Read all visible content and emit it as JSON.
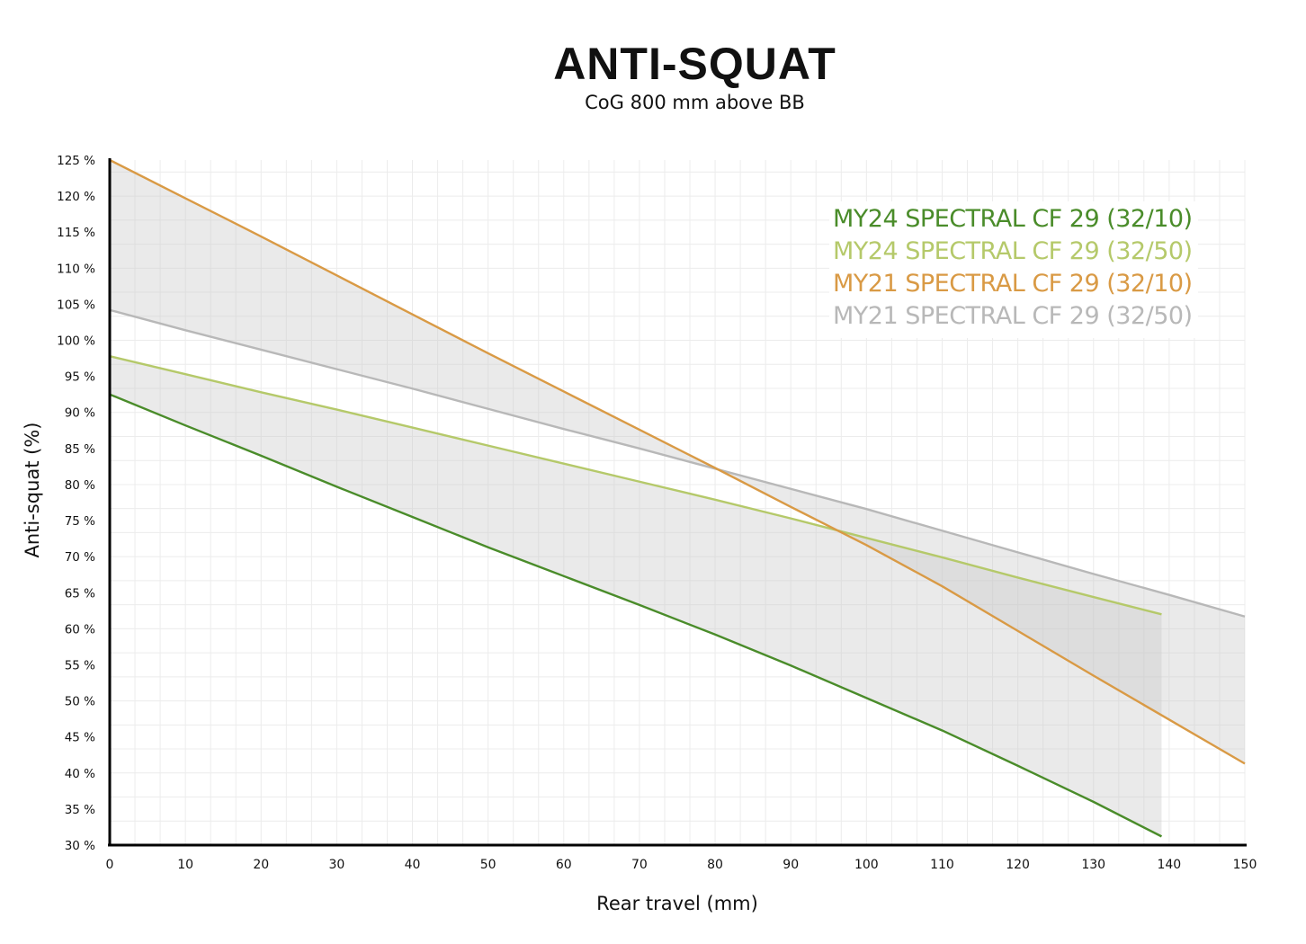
{
  "chart_data": {
    "type": "line",
    "title": "ANTI-SQUAT",
    "subtitle": "CoG 800 mm above BB",
    "xlabel": "Rear travel (mm)",
    "ylabel": "Anti-squat (%)",
    "xlim": [
      0,
      150
    ],
    "ylim": [
      30,
      125
    ],
    "x_ticks": [
      0,
      10,
      20,
      30,
      40,
      50,
      60,
      70,
      80,
      90,
      100,
      110,
      120,
      130,
      140,
      150
    ],
    "x_tick_labels": [
      "0",
      "10",
      "20",
      "30",
      "40",
      "50",
      "60",
      "70",
      "80",
      "90",
      "100",
      "110",
      "120",
      "130",
      "140",
      "150"
    ],
    "y_ticks": [
      30,
      35,
      40,
      45,
      50,
      55,
      60,
      65,
      70,
      75,
      80,
      85,
      90,
      95,
      100,
      105,
      110,
      115,
      120,
      125
    ],
    "y_tick_labels": [
      "30 %",
      "35 %",
      "40 %",
      "45 %",
      "50 %",
      "55 %",
      "60 %",
      "65 %",
      "70 %",
      "75 %",
      "80 %",
      "85 %",
      "90 %",
      "95 %",
      "100 %",
      "105 %",
      "110 %",
      "115 %",
      "120 %",
      "125 %"
    ],
    "grid": true,
    "legend_position": "top-right",
    "series": [
      {
        "name": "MY24 SPECTRAL CF 29 (32/10)",
        "color": "#4a8c2a",
        "x": [
          0,
          10,
          20,
          30,
          40,
          50,
          60,
          70,
          80,
          90,
          100,
          110,
          120,
          130,
          139
        ],
        "values": [
          92.5,
          88.2,
          84.0,
          79.7,
          75.5,
          71.3,
          67.3,
          63.3,
          59.2,
          54.9,
          50.4,
          45.9,
          41.0,
          36.0,
          31.2
        ]
      },
      {
        "name": "MY24 SPECTRAL CF 29 (32/50)",
        "color": "#b5c96a",
        "x": [
          0,
          10,
          20,
          30,
          40,
          50,
          60,
          70,
          80,
          90,
          100,
          110,
          120,
          130,
          139
        ],
        "values": [
          97.8,
          95.3,
          92.8,
          90.4,
          87.9,
          85.4,
          82.9,
          80.4,
          77.9,
          75.3,
          72.6,
          69.9,
          67.1,
          64.4,
          62.0
        ]
      },
      {
        "name": "MY21 SPECTRAL CF 29 (32/10)",
        "color": "#d99a45",
        "x": [
          0,
          10,
          20,
          30,
          40,
          50,
          60,
          70,
          80,
          90,
          100,
          110,
          120,
          130,
          140,
          150
        ],
        "values": [
          125.0,
          119.7,
          114.4,
          109.0,
          103.6,
          98.2,
          92.9,
          87.6,
          82.3,
          76.9,
          71.6,
          65.9,
          59.7,
          53.5,
          47.4,
          41.3
        ]
      },
      {
        "name": "MY21 SPECTRAL CF 29 (32/50)",
        "color": "#b8b8b8",
        "x": [
          0,
          10,
          20,
          30,
          40,
          50,
          60,
          70,
          80,
          90,
          100,
          110,
          120,
          130,
          140,
          150
        ],
        "values": [
          104.2,
          101.4,
          98.7,
          96.0,
          93.3,
          90.5,
          87.7,
          85.0,
          82.2,
          79.4,
          76.6,
          73.6,
          70.6,
          67.6,
          64.7,
          61.7
        ]
      }
    ],
    "bands": [
      {
        "name": "MY24 range",
        "between": [
          0,
          1
        ]
      },
      {
        "name": "MY21 range",
        "between": [
          2,
          3
        ]
      }
    ]
  }
}
